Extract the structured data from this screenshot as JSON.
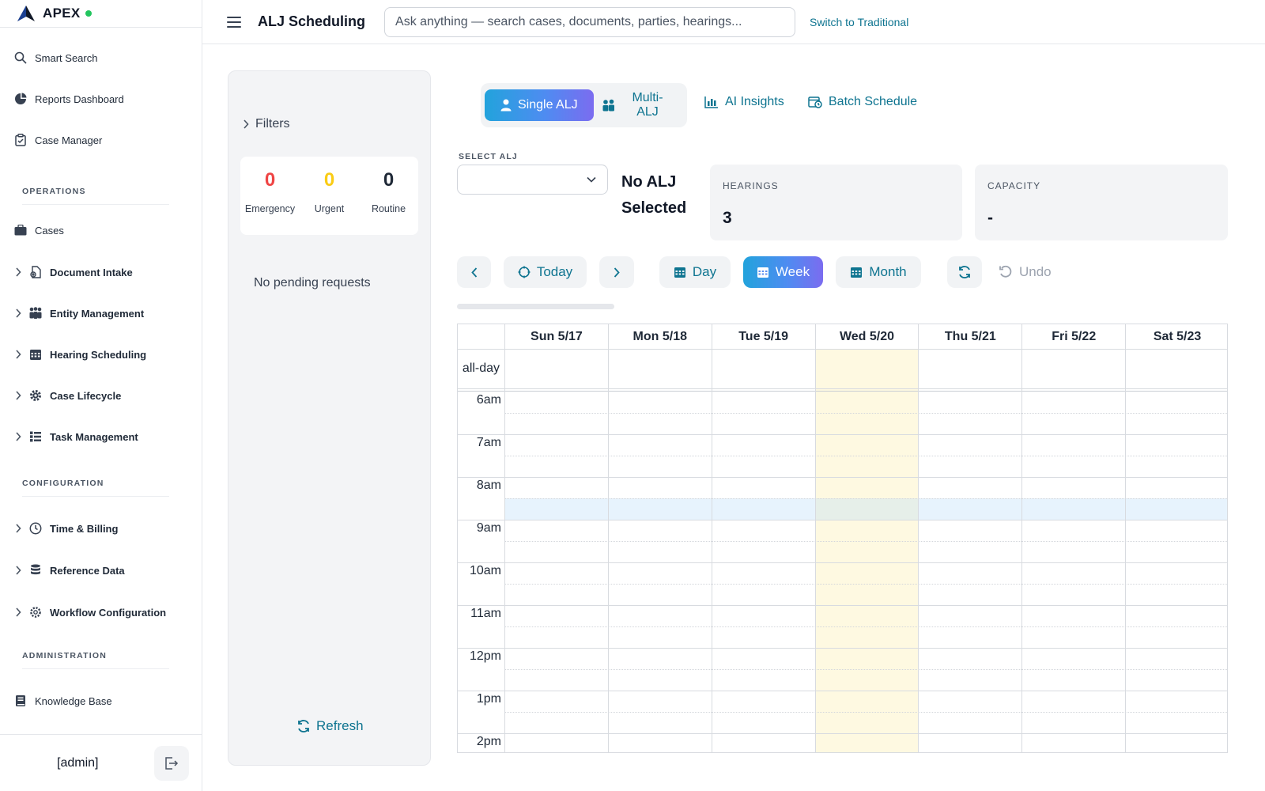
{
  "sidebar": {
    "brand": "APEX",
    "top_items": [
      {
        "label": "Smart Search",
        "icon": "search-icon"
      },
      {
        "label": "Reports Dashboard",
        "icon": "pie-chart-icon"
      },
      {
        "label": "Case Manager",
        "icon": "clipboard-icon"
      }
    ],
    "sections": {
      "operations": "OPERATIONS",
      "configuration": "CONFIGURATION",
      "administration": "ADMINISTRATION"
    },
    "operations_items": [
      {
        "label": "Cases",
        "icon": "briefcase-icon"
      },
      {
        "label": "Document Intake",
        "icon": "document-gear-icon"
      },
      {
        "label": "Entity Management",
        "icon": "people-icon"
      },
      {
        "label": "Hearing Scheduling",
        "icon": "calendar-icon"
      },
      {
        "label": "Case Lifecycle",
        "icon": "gear-icon"
      },
      {
        "label": "Task Management",
        "icon": "list-icon"
      }
    ],
    "configuration_items": [
      {
        "label": "Time & Billing",
        "icon": "clock-icon"
      },
      {
        "label": "Reference Data",
        "icon": "database-icon"
      },
      {
        "label": "Workflow Configuration",
        "icon": "cog-icon"
      }
    ],
    "administration_items": [
      {
        "label": "Knowledge Base",
        "icon": "book-icon"
      }
    ],
    "user": "[admin]"
  },
  "header": {
    "title": "ALJ Scheduling",
    "search_placeholder": "Ask anything — search cases, documents, parties, hearings...",
    "switch_label": "Switch to Traditional"
  },
  "pending": {
    "filters_label": "Filters",
    "counts": [
      {
        "value": "0",
        "label": "Emergency",
        "color": "#ef4444"
      },
      {
        "value": "0",
        "label": "Urgent",
        "color": "#facc15"
      },
      {
        "value": "0",
        "label": "Routine",
        "color": "#1f2937"
      }
    ],
    "empty_text": "No pending requests",
    "refresh_label": "Refresh"
  },
  "modes": {
    "single": "Single ALJ",
    "multi": "Multi-ALJ",
    "insights": "AI Insights",
    "batch": "Batch Schedule"
  },
  "alj": {
    "select_label": "SELECT ALJ",
    "selected_text": "No ALJ Selected"
  },
  "stats": {
    "hearings_label": "HEARINGS",
    "hearings_value": "3",
    "capacity_label": "CAPACITY",
    "capacity_value": "-"
  },
  "toolbar": {
    "today": "Today",
    "day": "Day",
    "week": "Week",
    "month": "Month",
    "undo": "Undo",
    "active_view": "week"
  },
  "calendar": {
    "days": [
      "Sun 5/17",
      "Mon 5/18",
      "Tue 5/19",
      "Wed 5/20",
      "Thu 5/21",
      "Fri 5/22",
      "Sat 5/23"
    ],
    "today_index": 3,
    "allday_label": "all-day",
    "times": [
      "6am",
      "7am",
      "8am",
      "9am",
      "10am",
      "11am",
      "12pm",
      "1pm",
      "2pm"
    ],
    "today_color": "#fef9e1"
  },
  "colors": {
    "accent": "#0e7490",
    "emergency": "#ef4444",
    "urgent": "#facc15",
    "status_online": "#22c55e"
  }
}
